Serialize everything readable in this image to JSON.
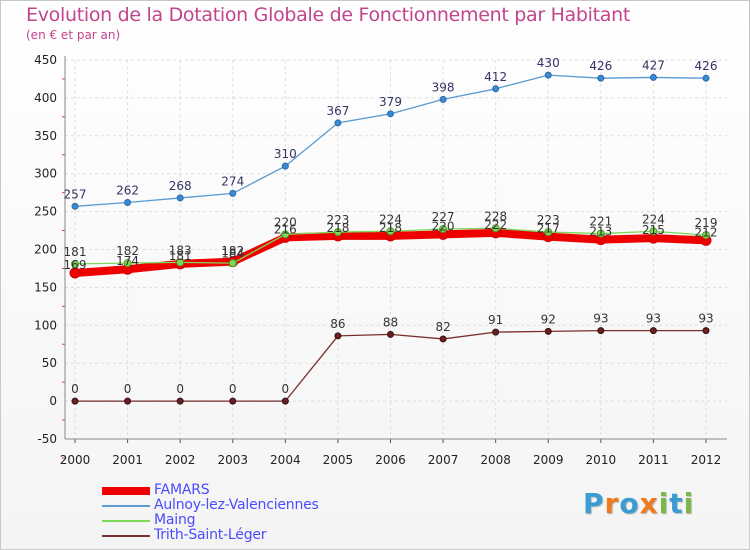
{
  "title": "Evolution de la Dotation Globale de Fonctionnement par Habitant",
  "subtitle": "(en € et par an)",
  "brand": {
    "text": "Proxiti",
    "letters": [
      "P",
      "r",
      "o",
      "x",
      "i",
      "t",
      "i"
    ],
    "colors": [
      "#3a9bd5",
      "#f07a1e",
      "#3a9bd5",
      "#f07a1e",
      "#7ab648",
      "#3a9bd5",
      "#7ab648"
    ]
  },
  "chart_data": {
    "type": "line",
    "title": "Evolution de la Dotation Globale de Fonctionnement par Habitant",
    "subtitle": "(en € et par an)",
    "xlabel": "",
    "ylabel": "",
    "x": [
      "2000",
      "2001",
      "2002",
      "2003",
      "2004",
      "2005",
      "2006",
      "2007",
      "2008",
      "2009",
      "2010",
      "2011",
      "2012"
    ],
    "yticks": [
      "-50",
      "0",
      "50",
      "100",
      "150",
      "200",
      "250",
      "300",
      "350",
      "400",
      "450"
    ],
    "ylim": [
      -50,
      450
    ],
    "grid": true,
    "legend_position": "bottom-left",
    "series": [
      {
        "name": "FAMARS",
        "color": "#ee0000",
        "values": [
          169,
          174,
          181,
          184,
          216,
          218,
          218,
          220,
          222,
          217,
          213,
          215,
          212
        ],
        "labels": [
          "169",
          "174",
          "181",
          "184",
          "216",
          "218",
          "218",
          "220",
          "222",
          "217",
          "213",
          "215",
          "212"
        ]
      },
      {
        "name": "Aulnoy-lez-Valenciennes",
        "color": "#5a9bd3",
        "values": [
          257,
          262,
          268,
          274,
          310,
          367,
          379,
          398,
          412,
          430,
          426,
          427,
          426
        ],
        "labels": [
          "257",
          "262",
          "268",
          "274",
          "310",
          "367",
          "379",
          "398",
          "412",
          "430",
          "426",
          "427",
          "426"
        ]
      },
      {
        "name": "Maing",
        "color": "#7ed957",
        "values": [
          181,
          182,
          183,
          182,
          220,
          223,
          224,
          227,
          228,
          223,
          221,
          224,
          219
        ],
        "labels": [
          "181",
          "182",
          "183",
          "182",
          "220",
          "223",
          "224",
          "227",
          "228",
          "223",
          "221",
          "224",
          "219"
        ]
      },
      {
        "name": "Trith-Saint-Léger",
        "color": "#7a2e2e",
        "values": [
          0,
          0,
          0,
          0,
          0,
          86,
          88,
          82,
          91,
          92,
          93,
          93,
          93
        ],
        "labels": [
          "0",
          "0",
          "0",
          "0",
          "0",
          "86",
          "88",
          "82",
          "91",
          "92",
          "93",
          "93",
          "93"
        ]
      }
    ]
  }
}
